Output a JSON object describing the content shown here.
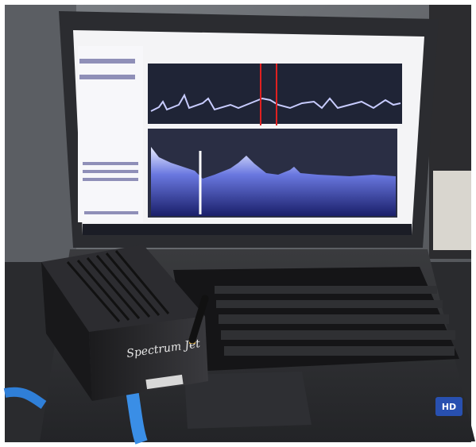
{
  "device": {
    "label": "Spectrum Jet"
  },
  "sticker": {
    "label": "HD"
  }
}
